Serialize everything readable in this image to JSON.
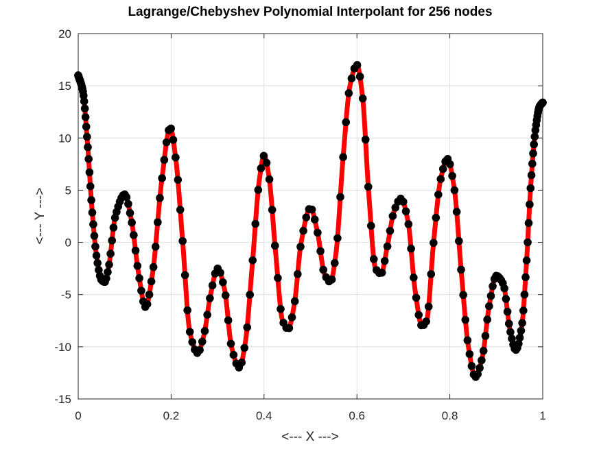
{
  "chart_data": {
    "type": "line",
    "title": "Lagrange/Chebyshev Polynomial Interpolant for 256 nodes",
    "xlabel": "<--- X --->",
    "ylabel": "<--- Y --->",
    "xlim": [
      0,
      1
    ],
    "ylim": [
      -15,
      20
    ],
    "xticks": [
      0,
      0.2,
      0.4,
      0.6,
      0.8,
      1
    ],
    "xtick_labels": [
      "0",
      "0.2",
      "0.4",
      "0.6",
      "0.8",
      "1"
    ],
    "yticks": [
      -15,
      -10,
      -5,
      0,
      5,
      10,
      15,
      20
    ],
    "ytick_labels": [
      "-15",
      "-10",
      "-5",
      "0",
      "5",
      "10",
      "15",
      "20"
    ],
    "grid": true,
    "legend": "none",
    "colors": {
      "curve": "#ff0000",
      "markers": "#000000"
    },
    "curve_keypoints": {
      "x": [
        0,
        0.01,
        0.02,
        0.03,
        0.04,
        0.05,
        0.057,
        0.065,
        0.08,
        0.1,
        0.115,
        0.13,
        0.145,
        0.16,
        0.18,
        0.198,
        0.21,
        0.225,
        0.24,
        0.257,
        0.27,
        0.285,
        0.3,
        0.315,
        0.33,
        0.347,
        0.36,
        0.375,
        0.39,
        0.4,
        0.41,
        0.425,
        0.44,
        0.452,
        0.465,
        0.48,
        0.5,
        0.515,
        0.53,
        0.543,
        0.555,
        0.57,
        0.585,
        0.6,
        0.612,
        0.625,
        0.64,
        0.652,
        0.665,
        0.68,
        0.695,
        0.71,
        0.725,
        0.74,
        0.75,
        0.765,
        0.78,
        0.795,
        0.81,
        0.825,
        0.84,
        0.855,
        0.87,
        0.885,
        0.9,
        0.915,
        0.93,
        0.942,
        0.955,
        0.965,
        0.975,
        0.985,
        0.993,
        1
      ],
      "y": [
        16,
        14.5,
        9.5,
        3,
        -1.5,
        -3.6,
        -3.8,
        -2.5,
        2.5,
        4.6,
        2,
        -3,
        -6.2,
        -3,
        6,
        11,
        8,
        0,
        -8.5,
        -10.6,
        -9,
        -5,
        -2.5,
        -4.5,
        -10,
        -12,
        -9.5,
        -2,
        6,
        8.3,
        6.5,
        -1,
        -7.5,
        -8.3,
        -6,
        0,
        3.3,
        1,
        -3,
        -3.8,
        -1,
        8,
        15,
        17,
        14,
        5,
        -2.5,
        -3,
        -0.5,
        3,
        4.2,
        2,
        -4.5,
        -8,
        -7.5,
        0,
        6,
        8,
        5,
        -3,
        -10,
        -12.9,
        -11,
        -6,
        -3.2,
        -4,
        -8.5,
        -10.3,
        -8,
        -2,
        6,
        11,
        13,
        13.4
      ]
    },
    "markers": {
      "count": 256,
      "spacing": "chebyshev"
    }
  }
}
